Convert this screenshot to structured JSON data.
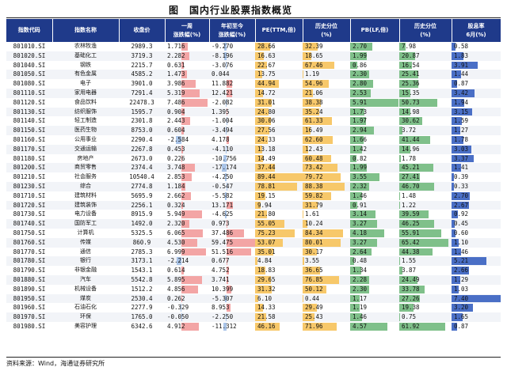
{
  "title": {
    "label": "图",
    "text": "国内行业股票指数概览"
  },
  "headers": [
    "指数代码",
    "指数名称",
    "收盘价",
    "一周\n涨跌幅(%)",
    "年初至今\n涨跌幅(%)",
    "PE(TTM,倍)",
    "历史分位\n(%)",
    "PB(LF,倍)",
    "历史分位\n(%)",
    "股息率\n6月(%)"
  ],
  "colors": {
    "header": "#1f3a8a",
    "pos": "#f3a5a5",
    "neg": "#a9c4e8",
    "pe": "#f7c86a",
    "pb": "#7fc08a",
    "div": "#4a6fc6"
  },
  "rows": [
    {
      "code": "801010.SI",
      "name": "农林牧渔",
      "close": "2989.3",
      "week": "1.716",
      "ytd": "-9.270",
      "pe": "28.66",
      "pe_pct": "32.39",
      "pb": "2.70",
      "pb_pct": "7.98",
      "div": "0.58"
    },
    {
      "code": "801020.SI",
      "name": "基础化工",
      "close": "3719.3",
      "week": "2.282",
      "ytd": "-8.196",
      "pe": "16.63",
      "pe_pct": "18.65",
      "pb": "1.99",
      "pb_pct": "20.87",
      "div": "1.83"
    },
    {
      "code": "801040.SI",
      "name": "钢铁",
      "close": "2215.7",
      "week": "0.631",
      "ytd": "-3.076",
      "pe": "22.67",
      "pe_pct": "67.46",
      "pb": "0.86",
      "pb_pct": "16.54",
      "div": "3.91"
    },
    {
      "code": "801050.SI",
      "name": "有色金属",
      "close": "4585.2",
      "week": "1.473",
      "ytd": "0.044",
      "pe": "13.75",
      "pe_pct": "1.19",
      "pb": "2.30",
      "pb_pct": "25.41",
      "div": "1.44"
    },
    {
      "code": "801080.SI",
      "name": "电子",
      "close": "3901.0",
      "week": "3.986",
      "ytd": "11.882",
      "pe": "44.94",
      "pe_pct": "54.96",
      "pb": "2.80",
      "pb_pct": "25.36",
      "div": "0.87"
    },
    {
      "code": "801110.SI",
      "name": "家用电器",
      "close": "7291.4",
      "week": "5.319",
      "ytd": "12.421",
      "pe": "14.72",
      "pe_pct": "21.06",
      "pb": "2.53",
      "pb_pct": "15.35",
      "div": "3.42"
    },
    {
      "code": "801120.SI",
      "name": "食品饮料",
      "close": "22478.3",
      "week": "7.486",
      "ytd": "-2.082",
      "pe": "31.01",
      "pe_pct": "38.38",
      "pb": "5.91",
      "pb_pct": "50.73",
      "div": "1.94"
    },
    {
      "code": "801130.SI",
      "name": "纺织服饰",
      "close": "1595.7",
      "week": "0.904",
      "ytd": "1.395",
      "pe": "24.80",
      "pe_pct": "35.24",
      "pb": "1.73",
      "pb_pct": "14.98",
      "div": "3.15"
    },
    {
      "code": "801140.SI",
      "name": "轻工制造",
      "close": "2301.8",
      "week": "2.443",
      "ytd": "-1.004",
      "pe": "30.06",
      "pe_pct": "61.33",
      "pb": "1.97",
      "pb_pct": "30.62",
      "div": "1.59"
    },
    {
      "code": "801150.SI",
      "name": "医药生物",
      "close": "8753.0",
      "week": "0.604",
      "ytd": "-3.494",
      "pe": "27.56",
      "pe_pct": "16.49",
      "pb": "2.94",
      "pb_pct": "3.72",
      "div": "1.27"
    },
    {
      "code": "801160.SI",
      "name": "公用事业",
      "close": "2290.4",
      "week": "-2.584",
      "ytd": "4.178",
      "pe": "24.33",
      "pe_pct": "62.60",
      "pb": "1.66",
      "pb_pct": "41.44",
      "div": "1.78"
    },
    {
      "code": "801170.SI",
      "name": "交通运输",
      "close": "2267.8",
      "week": "0.453",
      "ytd": "-4.110",
      "pe": "13.18",
      "pe_pct": "12.43",
      "pb": "1.42",
      "pb_pct": "14.96",
      "div": "3.03"
    },
    {
      "code": "801180.SI",
      "name": "房地产",
      "close": "2673.0",
      "week": "0.226",
      "ytd": "-10.756",
      "pe": "14.49",
      "pe_pct": "60.48",
      "pb": "0.82",
      "pb_pct": "1.78",
      "div": "3.37"
    },
    {
      "code": "801200.SI",
      "name": "商贸零售",
      "close": "2374.4",
      "week": "3.748",
      "ytd": "-17.174",
      "pe": "37.44",
      "pe_pct": "73.42",
      "pb": "1.99",
      "pb_pct": "45.21",
      "div": "1.41"
    },
    {
      "code": "801210.SI",
      "name": "社会服务",
      "close": "10540.4",
      "week": "2.853",
      "ytd": "-4.250",
      "pe": "89.44",
      "pe_pct": "79.72",
      "pb": "3.55",
      "pb_pct": "27.41",
      "div": "0.39"
    },
    {
      "code": "801230.SI",
      "name": "综合",
      "close": "2774.8",
      "week": "1.184",
      "ytd": "-0.547",
      "pe": "78.81",
      "pe_pct": "88.38",
      "pb": "2.32",
      "pb_pct": "46.70",
      "div": "0.33"
    },
    {
      "code": "801710.SI",
      "name": "建筑材料",
      "close": "5695.9",
      "week": "2.662",
      "ytd": "-5.582",
      "pe": "19.15",
      "pe_pct": "59.82",
      "pb": "1.46",
      "pb_pct": "1.48",
      "div": "2.70"
    },
    {
      "code": "801720.SI",
      "name": "建筑装饰",
      "close": "2256.1",
      "week": "0.324",
      "ytd": "13.171",
      "pe": "9.94",
      "pe_pct": "31.79",
      "pb": "0.91",
      "pb_pct": "1.22",
      "div": "2.67"
    },
    {
      "code": "801730.SI",
      "name": "电力设备",
      "close": "8915.9",
      "week": "5.949",
      "ytd": "-4.625",
      "pe": "21.80",
      "pe_pct": "1.61",
      "pb": "3.14",
      "pb_pct": "39.59",
      "div": "0.92"
    },
    {
      "code": "801740.SI",
      "name": "国防军工",
      "close": "1492.0",
      "week": "2.320",
      "ytd": "0.973",
      "pe": "55.05",
      "pe_pct": "10.24",
      "pb": "3.27",
      "pb_pct": "46.25",
      "div": "0.45"
    },
    {
      "code": "801750.SI",
      "name": "计算机",
      "close": "5325.5",
      "week": "6.065",
      "ytd": "37.486",
      "pe": "75.23",
      "pe_pct": "84.34",
      "pb": "4.18",
      "pb_pct": "55.91",
      "div": "0.60"
    },
    {
      "code": "801760.SI",
      "name": "传媒",
      "close": "860.9",
      "week": "4.530",
      "ytd": "59.475",
      "pe": "53.07",
      "pe_pct": "80.01",
      "pb": "3.27",
      "pb_pct": "65.42",
      "div": "1.10"
    },
    {
      "code": "801770.SI",
      "name": "通信",
      "close": "2785.3",
      "week": "6.999",
      "ytd": "51.516",
      "pe": "35.01",
      "pe_pct": "30.17",
      "pb": "2.64",
      "pb_pct": "44.38",
      "div": "1.46"
    },
    {
      "code": "801780.SI",
      "name": "银行",
      "close": "3173.1",
      "week": "-2.214",
      "ytd": "0.677",
      "pe": "4.84",
      "pe_pct": "3.55",
      "pb": "0.48",
      "pb_pct": "1.55",
      "div": "5.21"
    },
    {
      "code": "801790.SI",
      "name": "非银金融",
      "close": "1543.1",
      "week": "0.614",
      "ytd": "4.752",
      "pe": "18.83",
      "pe_pct": "36.65",
      "pb": "1.34",
      "pb_pct": "3.87",
      "div": "2.66"
    },
    {
      "code": "801880.SI",
      "name": "汽车",
      "close": "5542.8",
      "week": "5.895",
      "ytd": "3.741",
      "pe": "29.65",
      "pe_pct": "76.85",
      "pb": "2.28",
      "pb_pct": "24.49",
      "div": "1.29"
    },
    {
      "code": "801890.SI",
      "name": "机械设备",
      "close": "1512.2",
      "week": "4.856",
      "ytd": "10.399",
      "pe": "31.32",
      "pe_pct": "50.12",
      "pb": "2.30",
      "pb_pct": "33.78",
      "div": "1.03"
    },
    {
      "code": "801950.SI",
      "name": "煤炭",
      "close": "2530.4",
      "week": "0.262",
      "ytd": "-5.307",
      "pe": "6.10",
      "pe_pct": "0.44",
      "pb": "1.17",
      "pb_pct": "27.26",
      "div": "7.40"
    },
    {
      "code": "801960.SI",
      "name": "石油石化",
      "close": "2277.9",
      "week": "-0.329",
      "ytd": "8.953",
      "pe": "14.33",
      "pe_pct": "29.49",
      "pb": "1.19",
      "pb_pct": "19.38",
      "div": "3.20"
    },
    {
      "code": "801970.SI",
      "name": "环保",
      "close": "1765.0",
      "week": "-0.050",
      "ytd": "-2.250",
      "pe": "21.58",
      "pe_pct": "25.43",
      "pb": "1.46",
      "pb_pct": "0.75",
      "div": "1.65"
    },
    {
      "code": "801980.SI",
      "name": "美容护理",
      "close": "6342.6",
      "week": "4.912",
      "ytd": "-11.312",
      "pe": "46.16",
      "pe_pct": "71.96",
      "pb": "4.57",
      "pb_pct": "61.92",
      "div": "0.87"
    }
  ],
  "footer": "资料来源：Wind，海通证券研究所"
}
